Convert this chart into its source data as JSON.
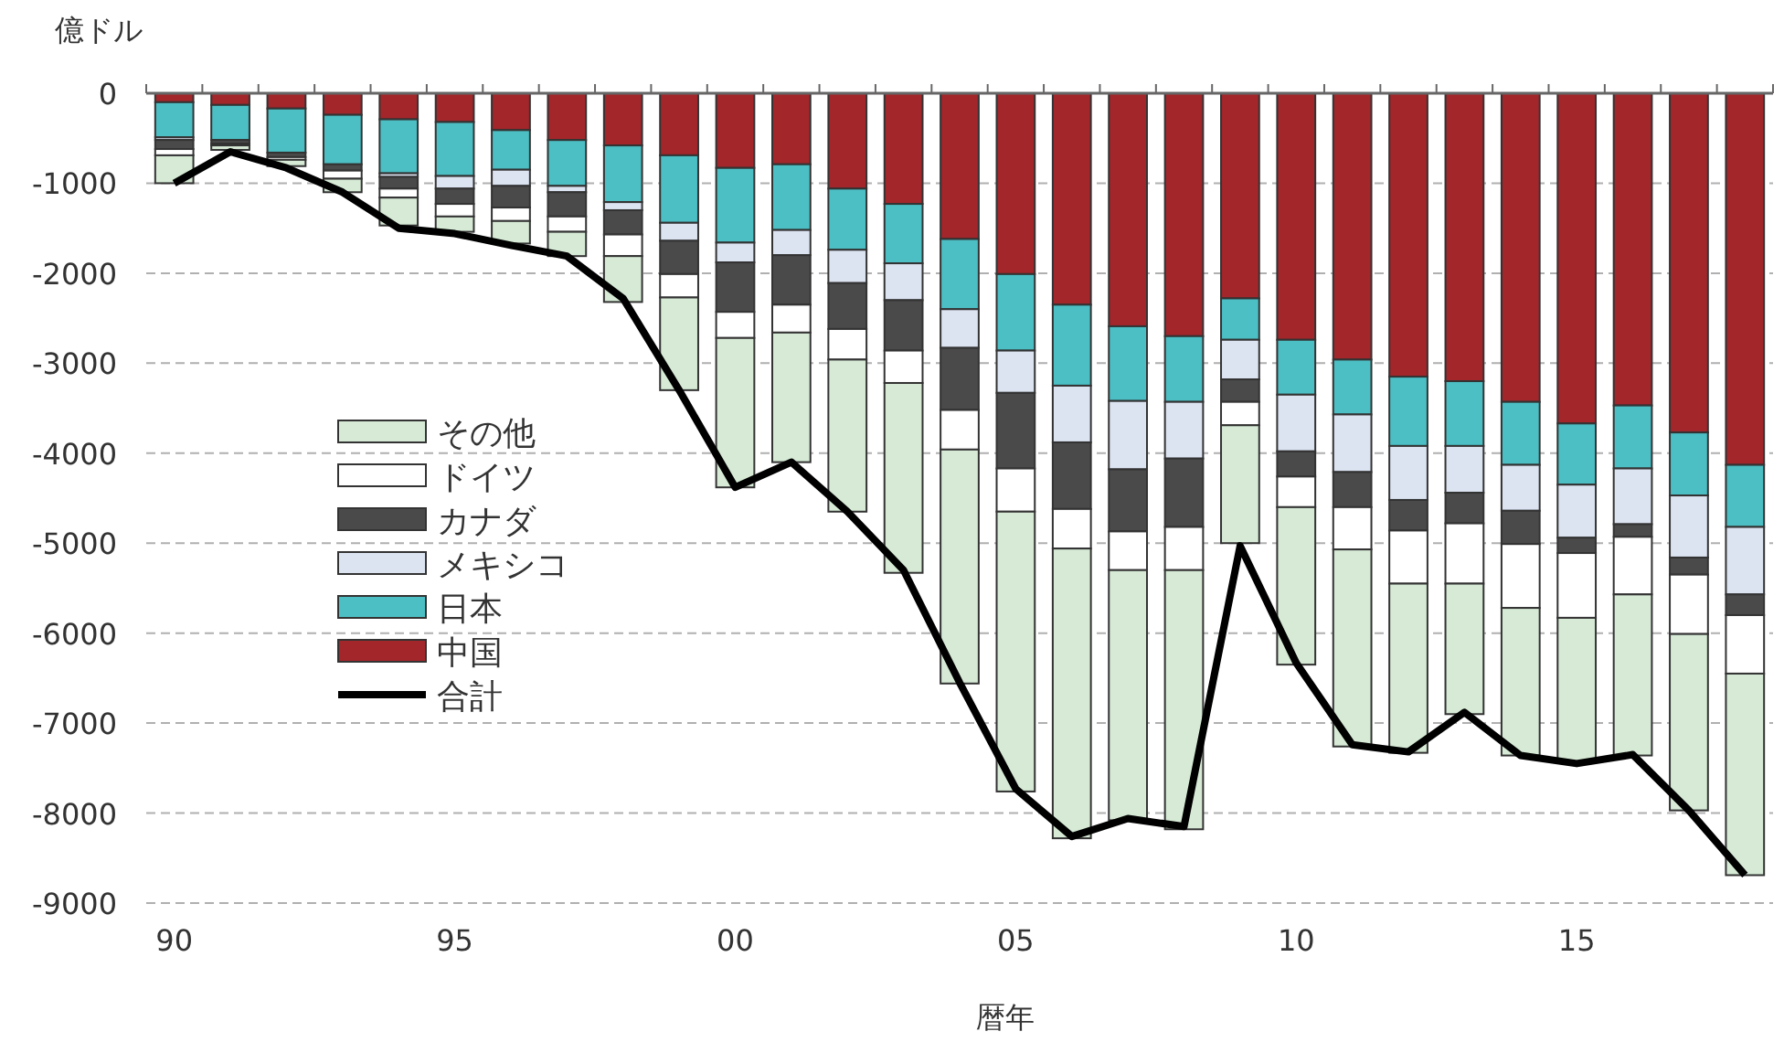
{
  "chart_data": {
    "type": "bar",
    "stacked": true,
    "ylabel": "億ドル",
    "xlabel": "暦年",
    "categories": [
      "90",
      null,
      null,
      null,
      null,
      "95",
      null,
      null,
      null,
      null,
      "00",
      null,
      null,
      null,
      null,
      "05",
      null,
      null,
      null,
      null,
      "10",
      null,
      null,
      null,
      null,
      "15",
      null,
      null,
      null
    ],
    "ylim": [
      -9000,
      0
    ],
    "yticks": [
      0,
      -1000,
      -2000,
      -3000,
      -4000,
      -5000,
      -6000,
      -7000,
      -8000,
      -9000
    ],
    "grid": "y",
    "legend": "left",
    "series": [
      {
        "name": "中国",
        "color": "#a3262b",
        "values": [
          -100,
          -130,
          -170,
          -240,
          -290,
          -320,
          -410,
          -520,
          -580,
          -690,
          -830,
          -790,
          -1060,
          -1230,
          -1620,
          -2010,
          -2350,
          -2590,
          -2700,
          -2280,
          -2740,
          -2960,
          -3150,
          -3200,
          -3430,
          -3670,
          -3470,
          -3770,
          -4130
        ]
      },
      {
        "name": "日本",
        "color": "#4bbfc4",
        "values": [
          -390,
          -390,
          -490,
          -550,
          -600,
          -600,
          -440,
          -510,
          -630,
          -750,
          -830,
          -730,
          -680,
          -660,
          -780,
          -850,
          -900,
          -830,
          -730,
          -460,
          -610,
          -610,
          -770,
          -720,
          -700,
          -680,
          -700,
          -700,
          -690
        ]
      },
      {
        "name": "メキシコ",
        "color": "#dce4f2",
        "values": [
          -30,
          null,
          null,
          null,
          -40,
          -140,
          -180,
          -70,
          -90,
          -200,
          -220,
          -280,
          -370,
          -410,
          -430,
          -470,
          -630,
          -760,
          -630,
          -440,
          -630,
          -640,
          -600,
          -520,
          -510,
          -590,
          -620,
          -690,
          -750
        ]
      },
      {
        "name": "カナダ",
        "color": "#4a4a4a",
        "values": [
          -100,
          -40,
          -50,
          -70,
          -130,
          -170,
          -240,
          -270,
          -270,
          -370,
          -550,
          -550,
          -510,
          -560,
          -690,
          -840,
          -740,
          -690,
          -760,
          -250,
          -280,
          -390,
          -340,
          -340,
          -370,
          -170,
          -140,
          -190,
          -230
        ]
      },
      {
        "name": "ドイツ",
        "color": "#ffffff",
        "values": [
          -70,
          -20,
          -30,
          -90,
          -100,
          -140,
          -150,
          -170,
          -240,
          -260,
          -290,
          -310,
          -340,
          -360,
          -440,
          -480,
          -440,
          -430,
          -480,
          -260,
          -340,
          -470,
          -590,
          -670,
          -710,
          -720,
          -640,
          -660,
          -650
        ]
      },
      {
        "name": "その他",
        "color": "#d6ead6",
        "values": [
          -310,
          -50,
          -70,
          -150,
          -310,
          -170,
          -250,
          -270,
          -510,
          -1030,
          -1660,
          -1440,
          -1690,
          -2110,
          -2600,
          -3110,
          -3220,
          -2780,
          -2880,
          -1310,
          -1750,
          -2190,
          -1880,
          -1450,
          -1640,
          -1600,
          -1790,
          -1960,
          -2240
        ]
      },
      {
        "name": "合計",
        "type": "line",
        "color": "#000000",
        "values": [
          -1000,
          -650,
          -830,
          -1100,
          -1500,
          -1560,
          -1690,
          -1810,
          -2280,
          -3300,
          -4380,
          -4100,
          -4650,
          -5300,
          -6550,
          -7730,
          -8260,
          -8060,
          -8150,
          -5030,
          -6330,
          -7240,
          -7320,
          -6880,
          -7360,
          -7450,
          -7350,
          -7970,
          -8690
        ]
      }
    ]
  }
}
